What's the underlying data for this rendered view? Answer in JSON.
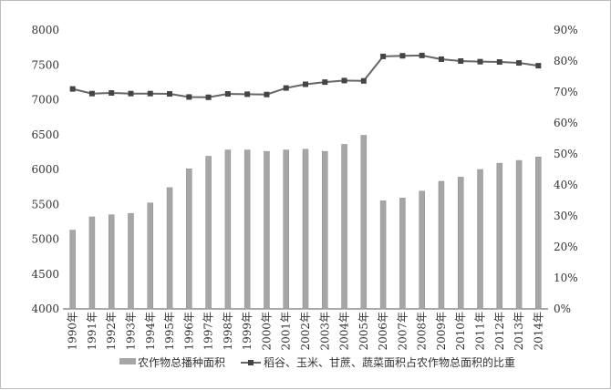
{
  "chart_data": {
    "type": "bar+line",
    "categories": [
      "1990年",
      "1991年",
      "1992年",
      "1993年",
      "1994年",
      "1995年",
      "1996年",
      "1997年",
      "1998年",
      "1999年",
      "2000年",
      "2001年",
      "2002年",
      "2003年",
      "2004年",
      "2005年",
      "2006年",
      "2007年",
      "2008年",
      "2009年",
      "2010年",
      "2011年",
      "2012年",
      "2013年",
      "2014年"
    ],
    "series": [
      {
        "name": "农作物总播种面积",
        "type": "bar",
        "axis": "left",
        "color": "#a6a6a6",
        "values": [
          5130,
          5320,
          5350,
          5370,
          5520,
          5740,
          6010,
          6190,
          6280,
          6280,
          6260,
          6280,
          6290,
          6260,
          6360,
          6490,
          5550,
          5590,
          5690,
          5830,
          5890,
          6000,
          6090,
          6130,
          6180
        ]
      },
      {
        "name": "稻谷、玉米、甘蔗、蔬菜面积占农作物总面积的比重",
        "type": "line",
        "axis": "right",
        "color": "#666666",
        "values": [
          71.0,
          69.5,
          69.7,
          69.5,
          69.5,
          69.4,
          68.4,
          68.3,
          69.4,
          69.3,
          69.2,
          71.3,
          72.5,
          73.2,
          73.7,
          73.6,
          81.5,
          81.7,
          81.8,
          80.6,
          80.0,
          79.8,
          79.7,
          79.4,
          78.5
        ]
      }
    ],
    "y_left": {
      "min": 4000,
      "max": 8000,
      "ticks": [
        "4000",
        "4500",
        "5000",
        "5500",
        "6000",
        "6500",
        "7000",
        "7500",
        "8000"
      ]
    },
    "y_right": {
      "min": 0,
      "max": 90,
      "ticks": [
        "0%",
        "10%",
        "20%",
        "30%",
        "40%",
        "50%",
        "60%",
        "70%",
        "80%",
        "90%"
      ]
    },
    "grid": false,
    "legend_position": "bottom"
  }
}
